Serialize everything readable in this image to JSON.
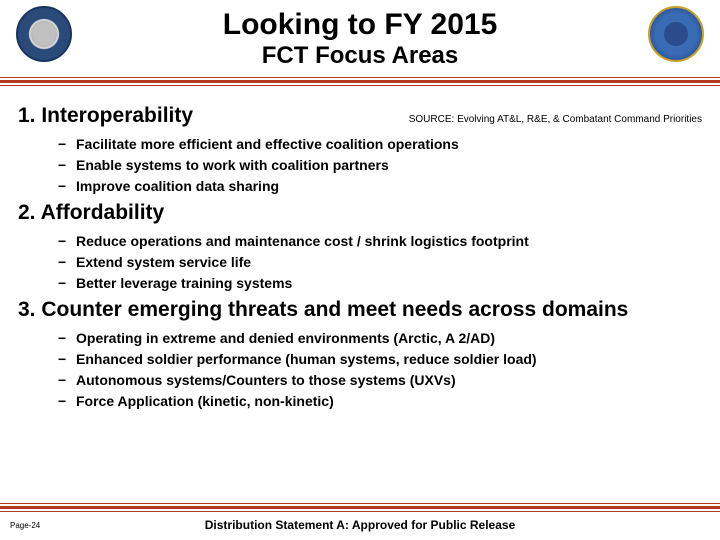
{
  "header": {
    "title1": "Looking to FY 2015",
    "title2": "FCT Focus Areas",
    "rule_color": "#b33a1e"
  },
  "source": "SOURCE:  Evolving AT&L, R&E, & Combatant Command Priorities",
  "sections": [
    {
      "heading": "1. Interoperability",
      "bullets": [
        "Facilitate more efficient and effective coalition operations",
        "Enable systems to work with coalition partners",
        "Improve coalition data sharing"
      ]
    },
    {
      "heading": "2. Affordability",
      "bullets": [
        "Reduce operations and maintenance cost / shrink logistics footprint",
        "Extend system service life",
        "Better leverage training systems"
      ]
    },
    {
      "heading": "3. Counter emerging threats and meet needs across domains",
      "bullets": [
        "Operating in extreme and denied environments (Arctic, A 2/AD)",
        "Enhanced soldier performance (human systems, reduce soldier load)",
        "Autonomous systems/Counters to those systems (UXVs)",
        "Force Application (kinetic, non-kinetic)"
      ]
    }
  ],
  "footer": {
    "page": "Page-24",
    "distribution": "Distribution Statement A: Approved for Public Release"
  },
  "colors": {
    "background": "#ffffff",
    "text": "#000000",
    "accent": "#b33a1e",
    "seal_left_outer": "#2a4a7a",
    "seal_right_outer": "#1a3a70"
  }
}
